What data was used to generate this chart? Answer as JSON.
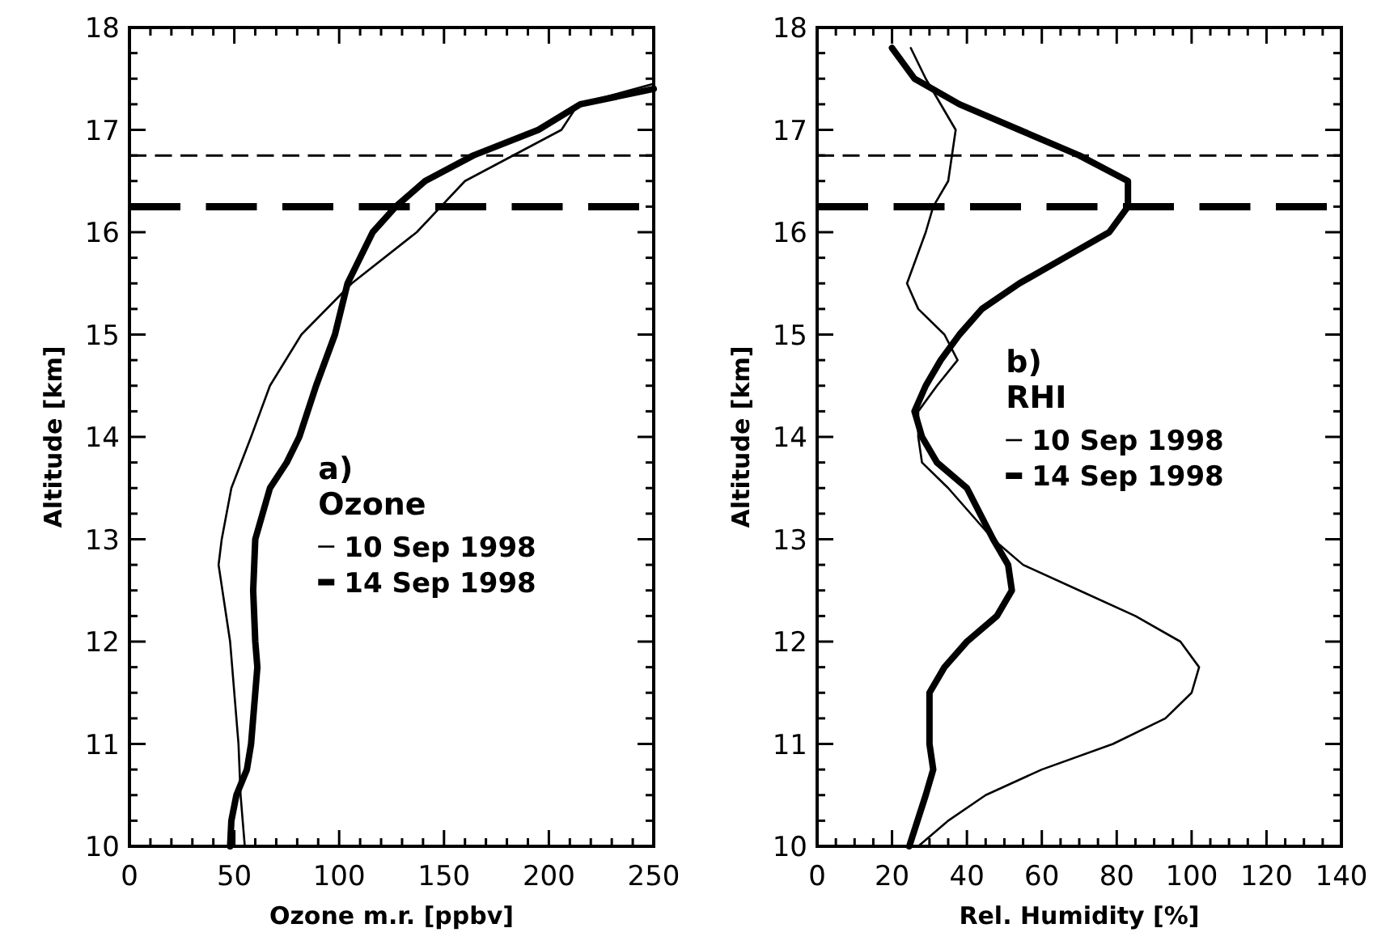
{
  "chart_data": [
    {
      "type": "line",
      "xlabel": "Ozone m.r. [ppbv]",
      "ylabel": "Altitude [km]",
      "legend_title": "Ozone",
      "annotations": [
        "a)"
      ],
      "legend": "bottom right",
      "xlim": [
        0,
        250
      ],
      "ylim": [
        10,
        18
      ],
      "xticks": [
        0,
        {
          "value": 10,
          "label": null
        },
        {
          "value": 20,
          "label": null
        },
        {
          "value": 30,
          "label": null
        },
        {
          "value": 40,
          "label": null
        },
        50,
        {
          "value": 60,
          "label": null
        },
        {
          "value": 70,
          "label": null
        },
        {
          "value": 80,
          "label": null
        },
        {
          "value": 90,
          "label": null
        },
        100,
        {
          "value": 110,
          "label": null
        },
        {
          "value": 120,
          "label": null
        },
        {
          "value": 130,
          "label": null
        },
        {
          "value": 140,
          "label": null
        },
        150,
        {
          "value": 160,
          "label": null
        },
        {
          "value": 170,
          "label": null
        },
        {
          "value": 180,
          "label": null
        },
        {
          "value": 190,
          "label": null
        },
        200,
        {
          "value": 210,
          "label": null
        },
        {
          "value": 220,
          "label": null
        },
        {
          "value": 230,
          "label": null
        },
        {
          "value": 240,
          "label": null
        },
        250
      ],
      "yticks": [
        10,
        {
          "value": 10.25,
          "label": null
        },
        {
          "value": 10.5,
          "label": null
        },
        {
          "value": 10.75,
          "label": null
        },
        11,
        {
          "value": 11.25,
          "label": null
        },
        {
          "value": 11.5,
          "label": null
        },
        {
          "value": 11.75,
          "label": null
        },
        12,
        {
          "value": 12.25,
          "label": null
        },
        {
          "value": 12.5,
          "label": null
        },
        {
          "value": 12.75,
          "label": null
        },
        13,
        {
          "value": 13.25,
          "label": null
        },
        {
          "value": 13.5,
          "label": null
        },
        {
          "value": 13.75,
          "label": null
        },
        14,
        {
          "value": 14.25,
          "label": null
        },
        {
          "value": 14.5,
          "label": null
        },
        {
          "value": 14.75,
          "label": null
        },
        15,
        {
          "value": 15.25,
          "label": null
        },
        {
          "value": 15.5,
          "label": null
        },
        {
          "value": 15.75,
          "label": null
        },
        16,
        {
          "value": 16.25,
          "label": null
        },
        {
          "value": 16.5,
          "label": null
        },
        {
          "value": 16.75,
          "label": null
        },
        17,
        {
          "value": 17.25,
          "label": null
        },
        {
          "value": 17.5,
          "label": null
        },
        {
          "value": 17.75,
          "label": null
        },
        18
      ],
      "ref_lines": [
        {
          "axis": "y",
          "value": 16.75,
          "line_style": "dashed",
          "color": "#000000"
        },
        {
          "axis": "y",
          "value": 16.25,
          "line_style": "dashed",
          "color": "#000000"
        }
      ],
      "series": [
        {
          "name": "10 Sep 1998",
          "color": "#000000",
          "x": [
            55,
            53,
            52,
            48,
            42.5,
            44,
            48.6,
            58,
            67,
            82,
            106,
            137,
            160,
            206,
            214,
            250
          ],
          "values": [
            10,
            10.5,
            11,
            12,
            12.75,
            13,
            13.5,
            14,
            14.5,
            15,
            15.5,
            16,
            16.5,
            17,
            17.25,
            17.45
          ]
        },
        {
          "name": "14 Sep 1998",
          "color": "#000000",
          "x": [
            48,
            48.6,
            51,
            56,
            58,
            61,
            60,
            59,
            60,
            67,
            75,
            81,
            89,
            98,
            104,
            116,
            127,
            141,
            164,
            195,
            215,
            250
          ],
          "values": [
            10,
            10.25,
            10.5,
            10.75,
            11,
            11.75,
            12,
            12.5,
            13,
            13.5,
            13.75,
            14,
            14.5,
            15,
            15.5,
            16,
            16.25,
            16.5,
            16.75,
            17,
            17.25,
            17.4
          ]
        }
      ]
    },
    {
      "type": "line",
      "xlabel": "Rel. Humidity [%]",
      "ylabel": "Altitude [km]",
      "legend_title": "RHI",
      "annotations": [
        "b)"
      ],
      "legend": "right",
      "xlim": [
        0,
        140
      ],
      "ylim": [
        10,
        18
      ],
      "xticks": [
        0,
        {
          "value": 5,
          "label": null
        },
        {
          "value": 10,
          "label": null
        },
        {
          "value": 15,
          "label": null
        },
        20,
        {
          "value": 25,
          "label": null
        },
        {
          "value": 30,
          "label": null
        },
        {
          "value": 35,
          "label": null
        },
        40,
        {
          "value": 45,
          "label": null
        },
        {
          "value": 50,
          "label": null
        },
        {
          "value": 55,
          "label": null
        },
        60,
        {
          "value": 65,
          "label": null
        },
        {
          "value": 70,
          "label": null
        },
        {
          "value": 75,
          "label": null
        },
        80,
        {
          "value": 85,
          "label": null
        },
        {
          "value": 90,
          "label": null
        },
        {
          "value": 95,
          "label": null
        },
        100,
        {
          "value": 105,
          "label": null
        },
        {
          "value": 110,
          "label": null
        },
        {
          "value": 115,
          "label": null
        },
        120,
        {
          "value": 125,
          "label": null
        },
        {
          "value": 130,
          "label": null
        },
        {
          "value": 135,
          "label": null
        },
        140
      ],
      "yticks": [
        10,
        {
          "value": 10.25,
          "label": null
        },
        {
          "value": 10.5,
          "label": null
        },
        {
          "value": 10.75,
          "label": null
        },
        11,
        {
          "value": 11.25,
          "label": null
        },
        {
          "value": 11.5,
          "label": null
        },
        {
          "value": 11.75,
          "label": null
        },
        12,
        {
          "value": 12.25,
          "label": null
        },
        {
          "value": 12.5,
          "label": null
        },
        {
          "value": 12.75,
          "label": null
        },
        13,
        {
          "value": 13.25,
          "label": null
        },
        {
          "value": 13.5,
          "label": null
        },
        {
          "value": 13.75,
          "label": null
        },
        14,
        {
          "value": 14.25,
          "label": null
        },
        {
          "value": 14.5,
          "label": null
        },
        {
          "value": 14.75,
          "label": null
        },
        15,
        {
          "value": 15.25,
          "label": null
        },
        {
          "value": 15.5,
          "label": null
        },
        {
          "value": 15.75,
          "label": null
        },
        16,
        {
          "value": 16.25,
          "label": null
        },
        {
          "value": 16.5,
          "label": null
        },
        {
          "value": 16.75,
          "label": null
        },
        17,
        {
          "value": 17.25,
          "label": null
        },
        {
          "value": 17.5,
          "label": null
        },
        {
          "value": 17.75,
          "label": null
        },
        18
      ],
      "ref_lines": [
        {
          "axis": "y",
          "value": 16.75,
          "line_style": "dashed",
          "color": "#000000"
        },
        {
          "axis": "y",
          "value": 16.25,
          "line_style": "dashed",
          "color": "#000000"
        }
      ],
      "series": [
        {
          "name": "10 Sep 1998",
          "color": "#000000",
          "x": [
            27,
            35,
            45,
            60,
            79,
            93,
            100,
            102,
            97,
            85,
            70,
            55,
            47,
            35,
            28,
            27,
            27,
            32,
            37.5,
            34,
            27,
            24,
            29,
            31,
            35,
            37,
            29,
            25
          ],
          "values": [
            10,
            10.25,
            10.5,
            10.75,
            11,
            11.25,
            11.5,
            11.75,
            12,
            12.25,
            12.5,
            12.75,
            13,
            13.5,
            13.75,
            14,
            14.25,
            14.5,
            14.75,
            15,
            15.25,
            15.5,
            16,
            16.25,
            16.5,
            17,
            17.5,
            17.8
          ]
        },
        {
          "name": "14 Sep 1998",
          "color": "#000000",
          "x": [
            24.6,
            29,
            31,
            30,
            30,
            34,
            40,
            48,
            52,
            51,
            47,
            40,
            32,
            28,
            26,
            29,
            33,
            38,
            44,
            54,
            66,
            78,
            83,
            83,
            70,
            54,
            38,
            26,
            20
          ],
          "values": [
            10,
            10.5,
            10.75,
            11,
            11.5,
            11.75,
            12,
            12.25,
            12.5,
            12.75,
            13,
            13.5,
            13.75,
            14,
            14.25,
            14.5,
            14.75,
            15,
            15.25,
            15.5,
            15.75,
            16,
            16.25,
            16.5,
            16.75,
            17,
            17.25,
            17.5,
            17.8
          ]
        }
      ]
    }
  ]
}
